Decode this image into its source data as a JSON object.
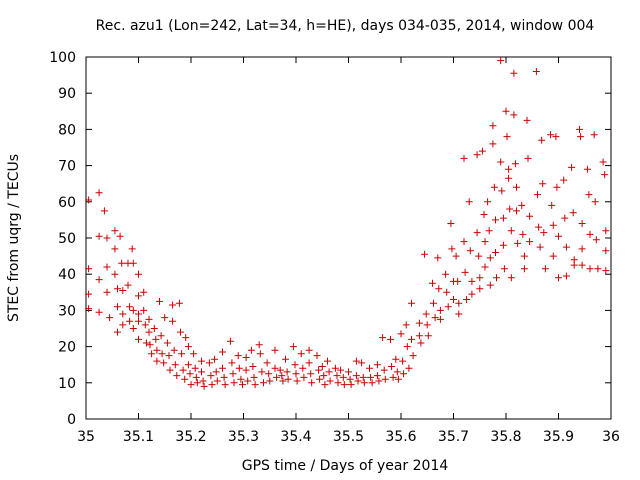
{
  "chart_data": {
    "type": "scatter",
    "title": "Rec. azu1 (Lon=242, Lat=34, h=HE), days 034-035, 2014, window 004",
    "xlabel": "GPS time / Days of year 2014",
    "ylabel": "STEC from uqrg / TECUs",
    "xlim": [
      35,
      36
    ],
    "ylim": [
      0,
      100
    ],
    "xticks": [
      "35",
      "35.1",
      "35.2",
      "35.3",
      "35.4",
      "35.5",
      "35.6",
      "35.7",
      "35.8",
      "35.9",
      "36"
    ],
    "yticks": [
      "0",
      "10",
      "20",
      "30",
      "40",
      "50",
      "60",
      "70",
      "80",
      "90",
      "100"
    ],
    "marker": "plus",
    "marker_color": "#cc0000",
    "grid": false,
    "series": [
      {
        "values": [
          [
            35.005,
            60.5
          ],
          [
            35.005,
            41.5
          ],
          [
            35.005,
            34.5
          ],
          [
            35.005,
            30.5
          ],
          [
            35.025,
            62.5
          ],
          [
            35.025,
            50.5
          ],
          [
            35.025,
            38.5
          ],
          [
            35.025,
            29.5
          ],
          [
            35.035,
            57.5
          ],
          [
            35.04,
            50
          ],
          [
            35.04,
            42
          ],
          [
            35.04,
            35
          ],
          [
            35.045,
            28
          ],
          [
            35.055,
            52
          ],
          [
            35.055,
            47
          ],
          [
            35.055,
            40
          ],
          [
            35.06,
            36
          ],
          [
            35.06,
            31
          ],
          [
            35.06,
            24
          ],
          [
            35.065,
            50.5
          ],
          [
            35.068,
            43
          ],
          [
            35.07,
            35.5
          ],
          [
            35.07,
            29
          ],
          [
            35.07,
            26
          ],
          [
            35.08,
            43
          ],
          [
            35.08,
            37
          ],
          [
            35.083,
            31
          ],
          [
            35.083,
            27
          ],
          [
            35.088,
            47
          ],
          [
            35.09,
            43
          ],
          [
            35.09,
            30
          ],
          [
            35.09,
            25
          ],
          [
            35.1,
            40
          ],
          [
            35.1,
            34
          ],
          [
            35.1,
            29
          ],
          [
            35.1,
            27
          ],
          [
            35.1,
            22
          ],
          [
            35.11,
            35
          ],
          [
            35.11,
            30
          ],
          [
            35.113,
            26
          ],
          [
            35.115,
            21
          ],
          [
            35.12,
            27.5
          ],
          [
            35.12,
            24
          ],
          [
            35.122,
            20.5
          ],
          [
            35.125,
            18
          ],
          [
            35.13,
            25
          ],
          [
            35.133,
            22
          ],
          [
            35.135,
            19
          ],
          [
            35.135,
            16
          ],
          [
            35.14,
            32.5
          ],
          [
            35.143,
            23
          ],
          [
            35.145,
            18
          ],
          [
            35.148,
            15.5
          ],
          [
            35.15,
            28
          ],
          [
            35.155,
            21
          ],
          [
            35.158,
            17.5
          ],
          [
            35.16,
            13.5
          ],
          [
            35.165,
            31.5
          ],
          [
            35.165,
            27
          ],
          [
            35.168,
            19
          ],
          [
            35.17,
            15
          ],
          [
            35.173,
            12
          ],
          [
            35.178,
            32
          ],
          [
            35.18,
            24
          ],
          [
            35.182,
            18
          ],
          [
            35.185,
            13.5
          ],
          [
            35.188,
            11
          ],
          [
            35.19,
            22.5
          ],
          [
            35.195,
            20
          ],
          [
            35.195,
            15
          ],
          [
            35.198,
            12.5
          ],
          [
            35.2,
            9.5
          ],
          [
            35.205,
            18
          ],
          [
            35.208,
            14
          ],
          [
            35.21,
            11.5
          ],
          [
            35.212,
            10
          ],
          [
            35.22,
            16
          ],
          [
            35.22,
            13
          ],
          [
            35.223,
            10.5
          ],
          [
            35.225,
            9
          ],
          [
            35.235,
            15.5
          ],
          [
            35.238,
            12
          ],
          [
            35.24,
            9.5
          ],
          [
            35.245,
            16.5
          ],
          [
            35.248,
            13
          ],
          [
            35.25,
            10.5
          ],
          [
            35.26,
            18.5
          ],
          [
            35.26,
            14
          ],
          [
            35.263,
            11.5
          ],
          [
            35.265,
            9.5
          ],
          [
            35.275,
            21.5
          ],
          [
            35.278,
            15.5
          ],
          [
            35.28,
            12.5
          ],
          [
            35.282,
            10
          ],
          [
            35.29,
            17.5
          ],
          [
            35.292,
            14
          ],
          [
            35.295,
            11
          ],
          [
            35.298,
            9.5
          ],
          [
            35.305,
            17
          ],
          [
            35.305,
            13.5
          ],
          [
            35.308,
            10.5
          ],
          [
            35.315,
            19
          ],
          [
            35.318,
            14.5
          ],
          [
            35.32,
            11.5
          ],
          [
            35.322,
            9.5
          ],
          [
            35.33,
            20.5
          ],
          [
            35.332,
            18
          ],
          [
            35.335,
            13
          ],
          [
            35.338,
            10
          ],
          [
            35.345,
            15.5
          ],
          [
            35.348,
            12.5
          ],
          [
            35.35,
            10.5
          ],
          [
            35.36,
            19
          ],
          [
            35.36,
            14
          ],
          [
            35.363,
            11.5
          ],
          [
            35.37,
            13.5
          ],
          [
            35.373,
            12
          ],
          [
            35.375,
            10.5
          ],
          [
            35.38,
            16.5
          ],
          [
            35.383,
            13
          ],
          [
            35.385,
            11
          ],
          [
            35.395,
            20
          ],
          [
            35.398,
            15
          ],
          [
            35.4,
            12.5
          ],
          [
            35.402,
            10.5
          ],
          [
            35.41,
            18
          ],
          [
            35.413,
            14
          ],
          [
            35.415,
            11.5
          ],
          [
            35.425,
            19
          ],
          [
            35.425,
            15.5
          ],
          [
            35.428,
            12.5
          ],
          [
            35.43,
            10
          ],
          [
            35.44,
            17.5
          ],
          [
            35.443,
            13.5
          ],
          [
            35.445,
            11
          ],
          [
            35.45,
            14.5
          ],
          [
            35.453,
            12
          ],
          [
            35.455,
            9.5
          ],
          [
            35.46,
            16
          ],
          [
            35.463,
            13
          ],
          [
            35.465,
            10.5
          ],
          [
            35.475,
            14
          ],
          [
            35.478,
            12
          ],
          [
            35.48,
            10
          ],
          [
            35.485,
            13.5
          ],
          [
            35.49,
            11.5
          ],
          [
            35.492,
            9.5
          ],
          [
            35.5,
            13
          ],
          [
            35.503,
            11
          ],
          [
            35.505,
            9.5
          ],
          [
            35.515,
            16
          ],
          [
            35.515,
            12
          ],
          [
            35.518,
            10.5
          ],
          [
            35.525,
            15.5
          ],
          [
            35.528,
            11.5
          ],
          [
            35.53,
            10
          ],
          [
            35.54,
            14
          ],
          [
            35.542,
            11.5
          ],
          [
            35.545,
            10
          ],
          [
            35.555,
            15
          ],
          [
            35.555,
            12
          ],
          [
            35.558,
            10.5
          ],
          [
            35.565,
            22.5
          ],
          [
            35.568,
            13.5
          ],
          [
            35.57,
            11
          ],
          [
            35.58,
            22
          ],
          [
            35.582,
            14.5
          ],
          [
            35.585,
            11.5
          ],
          [
            35.59,
            16.5
          ],
          [
            35.593,
            13
          ],
          [
            35.595,
            11
          ],
          [
            35.6,
            23.5
          ],
          [
            35.603,
            16
          ],
          [
            35.605,
            12.5
          ],
          [
            35.61,
            26
          ],
          [
            35.612,
            20
          ],
          [
            35.615,
            14
          ],
          [
            35.62,
            32
          ],
          [
            35.62,
            22
          ],
          [
            35.623,
            17.5
          ],
          [
            35.635,
            26.5
          ],
          [
            35.635,
            23
          ],
          [
            35.638,
            21
          ],
          [
            35.645,
            45.5
          ],
          [
            35.648,
            29
          ],
          [
            35.65,
            26
          ],
          [
            35.652,
            23
          ],
          [
            35.66,
            37.5
          ],
          [
            35.662,
            32
          ],
          [
            35.665,
            28
          ],
          [
            35.67,
            44.5
          ],
          [
            35.672,
            36
          ],
          [
            35.675,
            30
          ],
          [
            35.675,
            27.5
          ],
          [
            35.685,
            40
          ],
          [
            35.687,
            35
          ],
          [
            35.69,
            31
          ],
          [
            35.695,
            54
          ],
          [
            35.697,
            47
          ],
          [
            35.7,
            38
          ],
          [
            35.7,
            33
          ],
          [
            35.705,
            45
          ],
          [
            35.708,
            38
          ],
          [
            35.71,
            32
          ],
          [
            35.71,
            29
          ],
          [
            35.72,
            72
          ],
          [
            35.72,
            49
          ],
          [
            35.722,
            40.5
          ],
          [
            35.725,
            33
          ],
          [
            35.73,
            60
          ],
          [
            35.732,
            46.5
          ],
          [
            35.735,
            38
          ],
          [
            35.735,
            34.5
          ],
          [
            35.745,
            73
          ],
          [
            35.745,
            51.5
          ],
          [
            35.748,
            45
          ],
          [
            35.75,
            39
          ],
          [
            35.75,
            36
          ],
          [
            35.755,
            74
          ],
          [
            35.758,
            56.5
          ],
          [
            35.76,
            49
          ],
          [
            35.76,
            42
          ],
          [
            35.765,
            60
          ],
          [
            35.768,
            52
          ],
          [
            35.77,
            44.5
          ],
          [
            35.77,
            37
          ],
          [
            35.775,
            81
          ],
          [
            35.775,
            76
          ],
          [
            35.778,
            64
          ],
          [
            35.78,
            55
          ],
          [
            35.78,
            46
          ],
          [
            35.782,
            39
          ],
          [
            35.79,
            99
          ],
          [
            35.79,
            71
          ],
          [
            35.792,
            63
          ],
          [
            35.795,
            55.5
          ],
          [
            35.795,
            48
          ],
          [
            35.797,
            41.5
          ],
          [
            35.8,
            85
          ],
          [
            35.802,
            78
          ],
          [
            35.805,
            69
          ],
          [
            35.805,
            66.5
          ],
          [
            35.807,
            58
          ],
          [
            35.81,
            52
          ],
          [
            35.81,
            39
          ],
          [
            35.815,
            95.5
          ],
          [
            35.815,
            84
          ],
          [
            35.818,
            70.5
          ],
          [
            35.82,
            64
          ],
          [
            35.82,
            57.5
          ],
          [
            35.822,
            48.5
          ],
          [
            35.83,
            59
          ],
          [
            35.832,
            51
          ],
          [
            35.835,
            45
          ],
          [
            35.835,
            41.5
          ],
          [
            35.84,
            82.5
          ],
          [
            35.842,
            72
          ],
          [
            35.845,
            56
          ],
          [
            35.845,
            49
          ],
          [
            35.858,
            96
          ],
          [
            35.86,
            62
          ],
          [
            35.862,
            53
          ],
          [
            35.865,
            47.5
          ],
          [
            35.868,
            77
          ],
          [
            35.87,
            65
          ],
          [
            35.872,
            51.5
          ],
          [
            35.875,
            41.5
          ],
          [
            35.885,
            78.5
          ],
          [
            35.887,
            59
          ],
          [
            35.89,
            53.5
          ],
          [
            35.89,
            45
          ],
          [
            35.895,
            78
          ],
          [
            35.897,
            64
          ],
          [
            35.9,
            50.5
          ],
          [
            35.9,
            39
          ],
          [
            35.91,
            66
          ],
          [
            35.912,
            55.5
          ],
          [
            35.915,
            47.5
          ],
          [
            35.915,
            39.5
          ],
          [
            35.925,
            69.5
          ],
          [
            35.928,
            57
          ],
          [
            35.93,
            44
          ],
          [
            35.93,
            42.5
          ],
          [
            35.94,
            80
          ],
          [
            35.942,
            78
          ],
          [
            35.945,
            54
          ],
          [
            35.945,
            47
          ],
          [
            35.945,
            42.5
          ],
          [
            35.955,
            69
          ],
          [
            35.958,
            62
          ],
          [
            35.96,
            51
          ],
          [
            35.96,
            41.5
          ],
          [
            35.968,
            78.5
          ],
          [
            35.97,
            60
          ],
          [
            35.972,
            49.5
          ],
          [
            35.975,
            41.5
          ],
          [
            35.985,
            71
          ],
          [
            35.988,
            67.5
          ],
          [
            35.99,
            52
          ],
          [
            35.99,
            46.5
          ],
          [
            35.99,
            41
          ]
        ]
      }
    ]
  }
}
